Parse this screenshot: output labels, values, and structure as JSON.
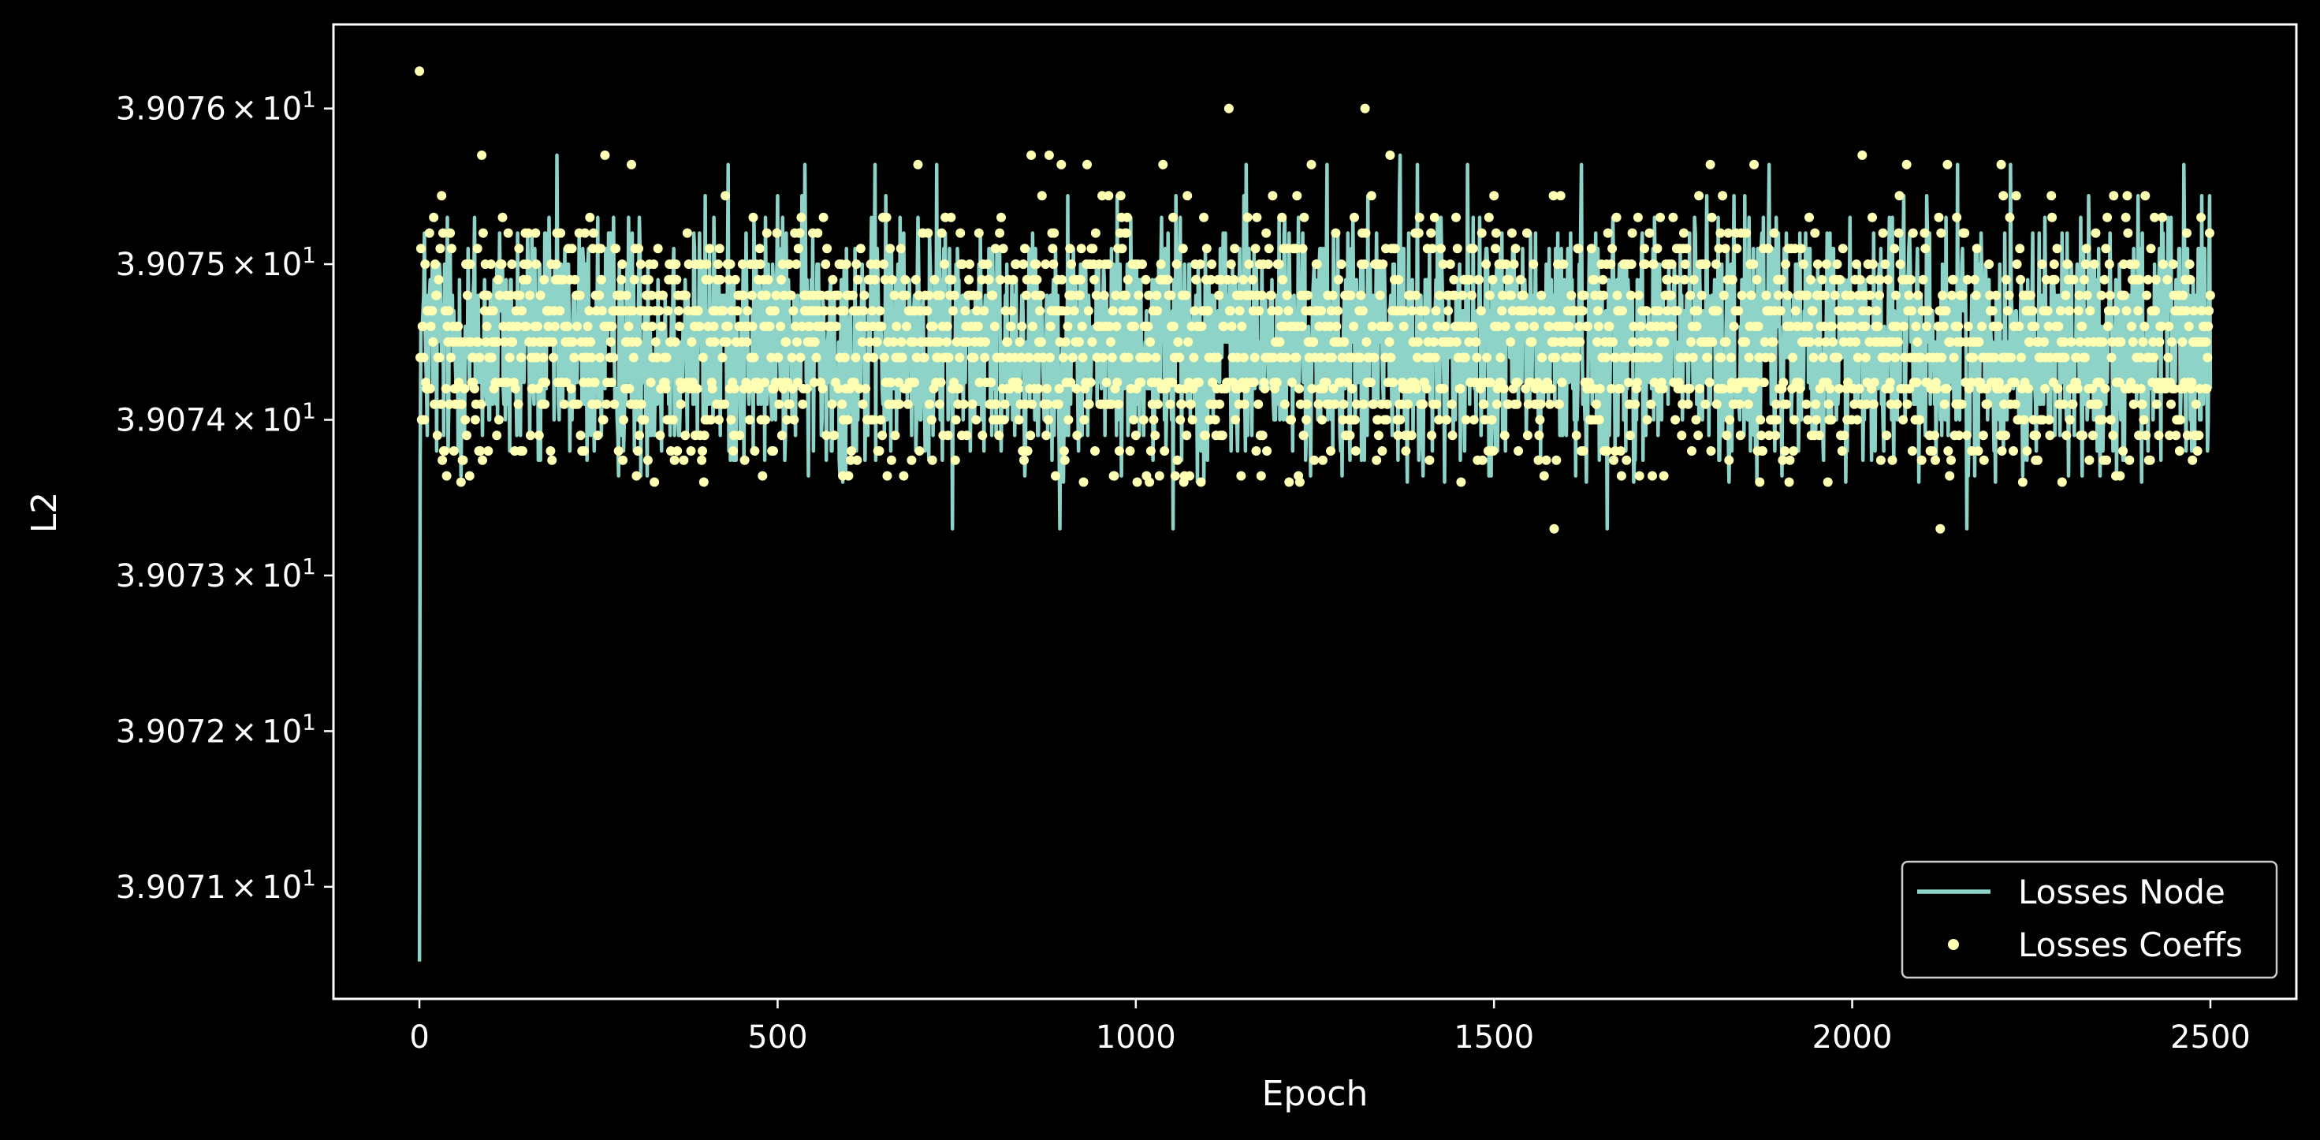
{
  "chart_data": {
    "type": "line",
    "xlabel": "Epoch",
    "ylabel": "L2",
    "xlim": [
      -120,
      2620
    ],
    "ylim": [
      39.07028,
      39.07654
    ],
    "x_ticks": [
      0,
      500,
      1000,
      1500,
      2000,
      2500
    ],
    "x_tick_labels": [
      "0",
      "500",
      "1000",
      "1500",
      "2000",
      "2500"
    ],
    "y_ticks": [
      39.071,
      39.072,
      39.073,
      39.074,
      39.075,
      39.076
    ],
    "y_tick_mantissas": [
      "3.9071",
      "3.9072",
      "3.9073",
      "3.9074",
      "3.9075",
      "3.9076"
    ],
    "y_tick_multiplier": "×",
    "y_tick_base": "10",
    "y_tick_exponent": "1",
    "yscale": "log",
    "grid": false,
    "legend_position": "bottom-right",
    "colors": {
      "background": "#000000",
      "axes": "#ffffff",
      "losses_node": "#8dd3c7",
      "losses_coeffs": "#feffb3"
    },
    "series": [
      {
        "name": "Losses Node",
        "style": "line",
        "color": "#8dd3c7",
        "n_points": 2501,
        "x_start": 0,
        "x_end": 2500,
        "first_value": 39.07052,
        "level_values": [
          39.07326,
          39.0733,
          39.0736,
          39.07364,
          39.07374,
          39.0738,
          39.0739,
          39.074,
          39.0741,
          39.0742,
          39.07424,
          39.0744,
          39.0745,
          39.0746,
          39.0747,
          39.0748,
          39.0749,
          39.075,
          39.0751,
          39.0752,
          39.0753,
          39.07544,
          39.07564,
          39.0757,
          39.076
        ]
      },
      {
        "name": "Losses Coeffs",
        "style": "points",
        "color": "#feffb3",
        "n_points": 2501,
        "x_start": 0,
        "x_end": 2500,
        "first_value": 39.07624,
        "level_values": [
          39.07326,
          39.0733,
          39.0736,
          39.07364,
          39.07374,
          39.0738,
          39.0739,
          39.074,
          39.0741,
          39.0742,
          39.07424,
          39.0744,
          39.0745,
          39.0746,
          39.0747,
          39.0748,
          39.0749,
          39.075,
          39.0751,
          39.0752,
          39.0753,
          39.07544,
          39.07564,
          39.0757,
          39.076
        ]
      }
    ]
  }
}
